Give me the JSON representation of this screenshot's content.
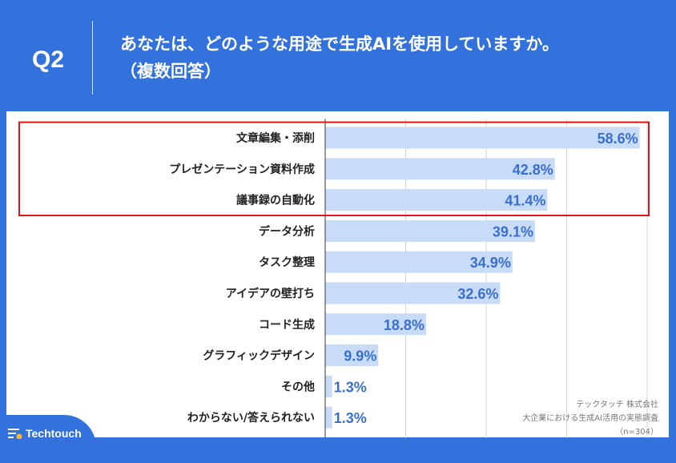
{
  "header": {
    "question": "Q2",
    "title_line1": "あなたは、どのような用途で生成AIを使用していますか。",
    "title_line2": "（複数回答）"
  },
  "source": {
    "line1": "テックタッチ 株式会社",
    "line2": "大企業における生成AI活用の実態調査",
    "line3": "（n=304）"
  },
  "logo": {
    "text": "Techtouch"
  },
  "colors": {
    "background": "#3371dc",
    "bar": "#c9dcf7",
    "value_text": "#3a6fd0",
    "highlight_box": "#e0151b"
  },
  "chart_data": {
    "type": "bar",
    "orientation": "horizontal",
    "categories": [
      "文章編集・添削",
      "プレゼンテーション資料作成",
      "議事録の自動化",
      "データ分析",
      "タスク整理",
      "アイデアの壁打ち",
      "コード生成",
      "グラフィックデザイン",
      "その他",
      "わからない/答えられない"
    ],
    "values": [
      58.6,
      42.8,
      41.4,
      39.1,
      34.9,
      32.6,
      18.8,
      9.9,
      1.3,
      1.3
    ],
    "value_labels": [
      "58.6%",
      "42.8%",
      "41.4%",
      "39.1%",
      "34.9%",
      "32.6%",
      "18.8%",
      "9.9%",
      "1.3%",
      "1.3%"
    ],
    "xlim": [
      0,
      60
    ],
    "grid_values": [
      15,
      30,
      45,
      60
    ],
    "grid": true,
    "highlighted_categories": [
      0,
      1,
      2
    ]
  }
}
